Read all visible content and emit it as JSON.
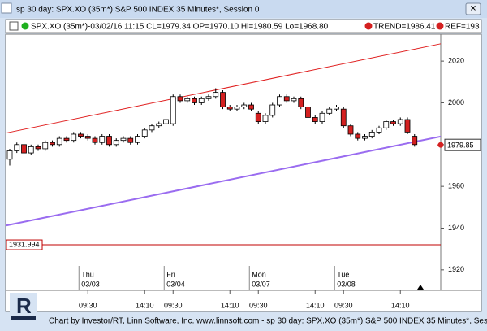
{
  "window_title": "sp 30 day: SPX.XO (35m*) S&P 500 INDEX 35 Minutes*, Session 0",
  "footer": "Chart by Investor/RT, Linn Software, Inc. www.linnsoft.com - sp 30 day: SPX.XO (35m*) S&P 500 INDEX 35 Minutes*, Session 0",
  "chart_data": {
    "type": "candlestick",
    "header": "SPX.XO (35m*)-03/02/16 11:15 CL=1979.34 OP=1970.10 Hi=1980.59 Lo=1968.80",
    "trend_text": "TREND=1986.41",
    "ref_text": "REF=193",
    "categories": [
      null,
      null,
      null,
      null,
      null,
      null,
      null,
      null,
      null,
      null,
      null,
      "09:30",
      null,
      null,
      null,
      null,
      null,
      null,
      null,
      "14:10",
      null,
      null,
      null,
      "09:30",
      null,
      null,
      null,
      null,
      null,
      null,
      null,
      "14:10",
      null,
      null,
      null,
      "09:30",
      null,
      null,
      null,
      null,
      null,
      null,
      null,
      "14:10",
      null,
      null,
      null,
      "09:30",
      null,
      null,
      null,
      null,
      null,
      null,
      null,
      "14:10",
      null,
      null
    ],
    "days": [
      {
        "index": 11,
        "day": "Thu",
        "date": "03/03"
      },
      {
        "index": 23,
        "day": "Fri",
        "date": "03/04"
      },
      {
        "index": 35,
        "day": "Mon",
        "date": "03/07"
      },
      {
        "index": 47,
        "day": "Tue",
        "date": "03/08"
      }
    ],
    "open": [
      1973,
      1977,
      1980,
      1976,
      1979,
      1978,
      1981,
      1980,
      1983,
      1982,
      1985,
      1984,
      1983,
      1981,
      1984,
      1980,
      1982,
      1983,
      1981,
      1984,
      1987,
      1989,
      1990,
      1990,
      2003,
      2001,
      2002,
      2000,
      2002,
      2003,
      2005,
      1998,
      1997,
      1998,
      1999,
      1995,
      1991,
      1994,
      1999,
      2003,
      2001,
      2002,
      1998,
      1993,
      1991,
      1995,
      1997,
      1997,
      1989,
      1985,
      1983,
      1984,
      1986,
      1988,
      1991,
      1990,
      1992,
      1984
    ],
    "high": [
      1978,
      1981,
      1981,
      1980,
      1980,
      1982,
      1982,
      1984,
      1984,
      1986,
      1986,
      1985,
      1984,
      1985,
      1985,
      1983,
      1984,
      1984,
      1985,
      1988,
      1990,
      1991,
      1993,
      2004,
      2004,
      2003,
      2003,
      2003,
      2004,
      2007,
      2006,
      1999,
      1999,
      2000,
      2000,
      1996,
      1995,
      2000,
      2004,
      2004,
      2003,
      2003,
      1999,
      1994,
      1996,
      1998,
      1999,
      1998,
      1990,
      1986,
      1985,
      1987,
      1989,
      1992,
      1992,
      1993,
      1993,
      1985
    ],
    "low": [
      1970,
      1976,
      1975,
      1975,
      1977,
      1977,
      1979,
      1979,
      1981,
      1981,
      1983,
      1982,
      1980,
      1980,
      1979,
      1979,
      1981,
      1980,
      1980,
      1983,
      1986,
      1988,
      1989,
      1989,
      2000,
      2000,
      1999,
      1999,
      2001,
      2002,
      1997,
      1996,
      1996,
      1997,
      1996,
      1990,
      1990,
      1993,
      1998,
      2000,
      2000,
      1997,
      1992,
      1990,
      1990,
      1994,
      1996,
      1988,
      1984,
      1982,
      1982,
      1983,
      1985,
      1987,
      1989,
      1989,
      1985,
      1979
    ],
    "close": [
      1977,
      1980,
      1976,
      1979,
      1978,
      1981,
      1980,
      1983,
      1982,
      1985,
      1984,
      1983,
      1981,
      1984,
      1980,
      1982,
      1983,
      1981,
      1984,
      1987,
      1989,
      1990,
      1992,
      2003,
      2001,
      2002,
      2000,
      2002,
      2003,
      2005,
      1998,
      1997,
      1998,
      1999,
      1997,
      1991,
      1994,
      1999,
      2003,
      2001,
      2002,
      1998,
      1993,
      1991,
      1995,
      1997,
      1998,
      1989,
      1985,
      1983,
      1984,
      1986,
      1988,
      1991,
      1990,
      1992,
      1986,
      1980
    ],
    "up_color": "#ffffff",
    "down_color": "#d42020",
    "trend_lines": [
      {
        "color": "#e02020",
        "values": [
          1985.5,
          2028.3
        ]
      },
      {
        "color": "#9a6cf0",
        "values": [
          1941.2,
          1983.9
        ]
      }
    ],
    "level": {
      "value": 1931.994,
      "color": "#c00000"
    },
    "last": {
      "value": 1979.85,
      "color": "#d42020"
    },
    "ylim": [
      1910.2,
      2032.9
    ],
    "yticks": [
      1920,
      1940,
      1960,
      1980,
      2000,
      2020
    ]
  }
}
